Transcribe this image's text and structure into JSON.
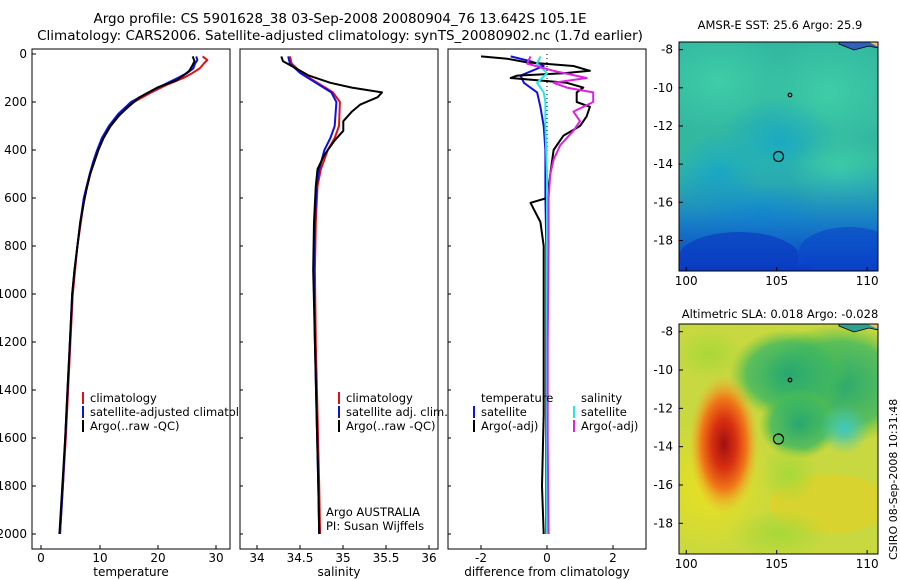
{
  "header": {
    "line1": "Argo profile: CS 5901628_38 03-Sep-2008 20080904_76 13.642S 105.1E",
    "line2": "Climatology: CARS2006. Satellite-adjusted climatology: synTS_20080902.nc (1.7d earlier)"
  },
  "side_label": "CSIRO 08-Sep-2008 10:31:48",
  "colors": {
    "climatology": "#e01010",
    "satellite": "#1010e0",
    "argo": "#000000",
    "satellite_salinity": "#20e8e8",
    "argo_salinity_adj": "#e020e0"
  },
  "chart_data": [
    {
      "type": "line",
      "id": "temperature",
      "xlabel": "temperature",
      "xlim": [
        -2,
        32
      ],
      "ylim": [
        2060,
        0
      ],
      "xticks": [
        0,
        10,
        20,
        30
      ],
      "yticks": [
        0,
        200,
        400,
        600,
        800,
        1000,
        1200,
        1400,
        1600,
        1800,
        2000
      ],
      "legend": [
        "climatology",
        "satellite-adjusted climatology",
        "Argo(..raw -QC)"
      ],
      "series": [
        {
          "name": "climatology",
          "color": "#e01010",
          "points": [
            [
              27.3,
              10
            ],
            [
              28.1,
              25
            ],
            [
              27.5,
              40
            ],
            [
              26.8,
              60
            ],
            [
              25.5,
              80
            ],
            [
              24.0,
              100
            ],
            [
              21.0,
              130
            ],
            [
              18.5,
              160
            ],
            [
              15.5,
              200
            ],
            [
              13.2,
              250
            ],
            [
              11.5,
              300
            ],
            [
              10.2,
              350
            ],
            [
              9.3,
              400
            ],
            [
              8.6,
              450
            ],
            [
              8.0,
              500
            ],
            [
              7.5,
              550
            ],
            [
              7.0,
              600
            ],
            [
              6.4,
              700
            ],
            [
              5.8,
              800
            ],
            [
              5.4,
              900
            ],
            [
              5.0,
              1000
            ],
            [
              4.6,
              1200
            ],
            [
              4.2,
              1400
            ],
            [
              3.8,
              1600
            ],
            [
              3.3,
              1800
            ],
            [
              2.8,
              2000
            ]
          ]
        },
        {
          "name": "satellite-adjusted climatology",
          "color": "#1010e0",
          "points": [
            [
              26.2,
              10
            ],
            [
              26.4,
              25
            ],
            [
              26.0,
              40
            ],
            [
              25.7,
              60
            ],
            [
              24.6,
              80
            ],
            [
              23.0,
              100
            ],
            [
              20.5,
              130
            ],
            [
              18.0,
              160
            ],
            [
              15.0,
              200
            ],
            [
              12.8,
              250
            ],
            [
              11.2,
              300
            ],
            [
              10.0,
              350
            ],
            [
              9.2,
              400
            ],
            [
              8.5,
              450
            ],
            [
              7.9,
              500
            ],
            [
              7.4,
              550
            ],
            [
              6.9,
              600
            ],
            [
              6.3,
              700
            ],
            [
              5.8,
              800
            ],
            [
              5.3,
              900
            ],
            [
              4.9,
              1000
            ],
            [
              4.5,
              1200
            ],
            [
              4.1,
              1400
            ],
            [
              3.7,
              1600
            ],
            [
              3.3,
              1800
            ],
            [
              2.8,
              2000
            ]
          ]
        },
        {
          "name": "Argo(..raw -QC)",
          "color": "#000000",
          "points": [
            [
              25.6,
              10
            ],
            [
              25.9,
              30
            ],
            [
              25.5,
              50
            ],
            [
              25.0,
              70
            ],
            [
              24.0,
              90
            ],
            [
              22.8,
              110
            ],
            [
              19.5,
              140
            ],
            [
              16.5,
              180
            ],
            [
              14.5,
              220
            ],
            [
              12.8,
              260
            ],
            [
              11.5,
              300
            ],
            [
              10.3,
              350
            ],
            [
              9.4,
              400
            ],
            [
              8.7,
              450
            ],
            [
              8.0,
              500
            ],
            [
              7.4,
              560
            ],
            [
              6.9,
              620
            ],
            [
              6.3,
              700
            ],
            [
              5.8,
              800
            ],
            [
              5.3,
              900
            ],
            [
              4.9,
              1000
            ],
            [
              4.5,
              1200
            ],
            [
              4.1,
              1400
            ],
            [
              3.7,
              1600
            ],
            [
              3.2,
              1800
            ],
            [
              2.7,
              2000
            ]
          ]
        }
      ]
    },
    {
      "type": "line",
      "id": "salinity",
      "xlabel": "salinity",
      "xlim": [
        33.8,
        36.1
      ],
      "ylim": [
        2060,
        0
      ],
      "xticks": [
        34,
        34.5,
        35,
        35.5,
        36
      ],
      "yticks": [
        0,
        200,
        400,
        600,
        800,
        1000,
        1200,
        1400,
        1600,
        1800,
        2000
      ],
      "legend": [
        "climatology",
        "satellite adj. clim.",
        "Argo(..raw -QC)"
      ],
      "annotation": [
        "Argo AUSTRALIA",
        "PI: Susan Wijffels"
      ],
      "series": [
        {
          "name": "climatology",
          "color": "#e01010",
          "points": [
            [
              34.38,
              10
            ],
            [
              34.4,
              40
            ],
            [
              34.52,
              80
            ],
            [
              34.7,
              120
            ],
            [
              34.88,
              160
            ],
            [
              34.96,
              200
            ],
            [
              34.95,
              300
            ],
            [
              34.9,
              350
            ],
            [
              34.82,
              400
            ],
            [
              34.74,
              480
            ],
            [
              34.7,
              550
            ],
            [
              34.68,
              700
            ],
            [
              34.67,
              900
            ],
            [
              34.68,
              1200
            ],
            [
              34.7,
              1500
            ],
            [
              34.72,
              1800
            ],
            [
              34.73,
              2000
            ]
          ]
        },
        {
          "name": "satellite adj. clim.",
          "color": "#1010e0",
          "points": [
            [
              34.36,
              10
            ],
            [
              34.38,
              40
            ],
            [
              34.5,
              80
            ],
            [
              34.68,
              120
            ],
            [
              34.86,
              160
            ],
            [
              34.92,
              200
            ],
            [
              34.9,
              300
            ],
            [
              34.85,
              350
            ],
            [
              34.78,
              400
            ],
            [
              34.72,
              480
            ],
            [
              34.69,
              550
            ],
            [
              34.67,
              700
            ],
            [
              34.66,
              900
            ],
            [
              34.67,
              1200
            ],
            [
              34.69,
              1500
            ],
            [
              34.71,
              1800
            ],
            [
              34.72,
              2000
            ]
          ]
        },
        {
          "name": "Argo(..raw -QC)",
          "color": "#000000",
          "points": [
            [
              34.28,
              10
            ],
            [
              34.3,
              30
            ],
            [
              34.45,
              60
            ],
            [
              34.6,
              90
            ],
            [
              34.85,
              120
            ],
            [
              35.1,
              140
            ],
            [
              35.45,
              160
            ],
            [
              35.4,
              180
            ],
            [
              35.2,
              210
            ],
            [
              35.1,
              240
            ],
            [
              35.0,
              280
            ],
            [
              35.0,
              320
            ],
            [
              34.9,
              360
            ],
            [
              34.78,
              420
            ],
            [
              34.7,
              480
            ],
            [
              34.68,
              550
            ],
            [
              34.66,
              700
            ],
            [
              34.65,
              900
            ],
            [
              34.67,
              1200
            ],
            [
              34.69,
              1500
            ],
            [
              34.71,
              1800
            ],
            [
              34.72,
              2000
            ]
          ]
        }
      ]
    },
    {
      "type": "line",
      "id": "difference",
      "xlabel": "difference from climatology",
      "xlim": [
        -3,
        3
      ],
      "ylim": [
        2060,
        0
      ],
      "xticks": [
        -2,
        0,
        2
      ],
      "yticks": [
        0,
        200,
        400,
        600,
        800,
        1000,
        1200,
        1400,
        1600,
        1800,
        2000
      ],
      "legend_left": [
        "temperature",
        "satellite",
        "Argo(-adj)"
      ],
      "legend_right": [
        "salinity",
        "satellite",
        "Argo(-adj)"
      ],
      "series": [
        {
          "name": "temperature satellite",
          "color": "#1010e0",
          "points": [
            [
              -1.1,
              10
            ],
            [
              -0.5,
              30
            ],
            [
              -0.1,
              50
            ],
            [
              -0.8,
              90
            ],
            [
              -0.7,
              120
            ],
            [
              -0.3,
              160
            ],
            [
              -0.2,
              220
            ],
            [
              -0.1,
              300
            ],
            [
              -0.05,
              400
            ],
            [
              -0.05,
              600
            ],
            [
              -0.02,
              800
            ],
            [
              -0.02,
              1000
            ],
            [
              -0.02,
              1500
            ],
            [
              -0.02,
              2000
            ]
          ]
        },
        {
          "name": "temperature Argo(-adj)",
          "color": "#000000",
          "points": [
            [
              -2.0,
              10
            ],
            [
              -1.2,
              20
            ],
            [
              -0.6,
              35
            ],
            [
              0.8,
              50
            ],
            [
              1.3,
              70
            ],
            [
              0.5,
              80
            ],
            [
              -0.9,
              90
            ],
            [
              -1.1,
              100
            ],
            [
              0.6,
              120
            ],
            [
              1.1,
              140
            ],
            [
              0.9,
              160
            ],
            [
              0.9,
              200
            ],
            [
              1.3,
              220
            ],
            [
              1.2,
              260
            ],
            [
              1.0,
              300
            ],
            [
              0.5,
              340
            ],
            [
              0.2,
              400
            ],
            [
              0.1,
              500
            ],
            [
              0.0,
              600
            ],
            [
              -0.5,
              620
            ],
            [
              -0.2,
              700
            ],
            [
              -0.1,
              800
            ],
            [
              -0.1,
              1000
            ],
            [
              -0.1,
              1200
            ],
            [
              -0.1,
              1500
            ],
            [
              -0.15,
              1800
            ],
            [
              -0.1,
              2000
            ]
          ]
        },
        {
          "name": "salinity satellite",
          "color": "#20e8e8",
          "points": [
            [
              -0.2,
              10
            ],
            [
              -0.3,
              40
            ],
            [
              0.0,
              80
            ],
            [
              -0.15,
              100
            ],
            [
              -0.3,
              120
            ],
            [
              -0.1,
              160
            ],
            [
              -0.05,
              200
            ],
            [
              -0.05,
              300
            ],
            [
              0.0,
              500
            ],
            [
              0.0,
              800
            ],
            [
              0.0,
              1200
            ],
            [
              0.0,
              1600
            ],
            [
              0.0,
              2000
            ]
          ]
        },
        {
          "name": "salinity Argo(-adj)",
          "color": "#e020e0",
          "points": [
            [
              -0.5,
              10
            ],
            [
              -0.6,
              40
            ],
            [
              0.2,
              70
            ],
            [
              1.2,
              100
            ],
            [
              0.2,
              120
            ],
            [
              0.6,
              140
            ],
            [
              1.4,
              160
            ],
            [
              1.4,
              200
            ],
            [
              0.8,
              240
            ],
            [
              1.0,
              280
            ],
            [
              0.8,
              320
            ],
            [
              0.4,
              380
            ],
            [
              0.2,
              440
            ],
            [
              0.1,
              500
            ],
            [
              0.05,
              600
            ],
            [
              0.05,
              800
            ],
            [
              0.02,
              1200
            ],
            [
              0.02,
              1600
            ],
            [
              0.05,
              2000
            ]
          ]
        }
      ]
    },
    {
      "type": "heatmap",
      "id": "sst-map",
      "title": "AMSR-E SST: 25.6 Argo: 25.9",
      "xlim": [
        99.6,
        110.6
      ],
      "ylim": [
        -19.6,
        -7.6
      ],
      "xticks": [
        100,
        105,
        110
      ],
      "yticks": [
        -8,
        -10,
        -12,
        -14,
        -16,
        -18
      ],
      "profile": [
        105.1,
        -13.6
      ]
    },
    {
      "type": "heatmap",
      "id": "sla-map",
      "title": "Altimetric SLA: 0.018 Argo: -0.028",
      "xlim": [
        99.6,
        110.6
      ],
      "ylim": [
        -19.6,
        -7.6
      ],
      "xticks": [
        100,
        105,
        110
      ],
      "yticks": [
        -8,
        -10,
        -12,
        -14,
        -16,
        -18
      ],
      "profile": [
        105.1,
        -13.6
      ]
    }
  ]
}
